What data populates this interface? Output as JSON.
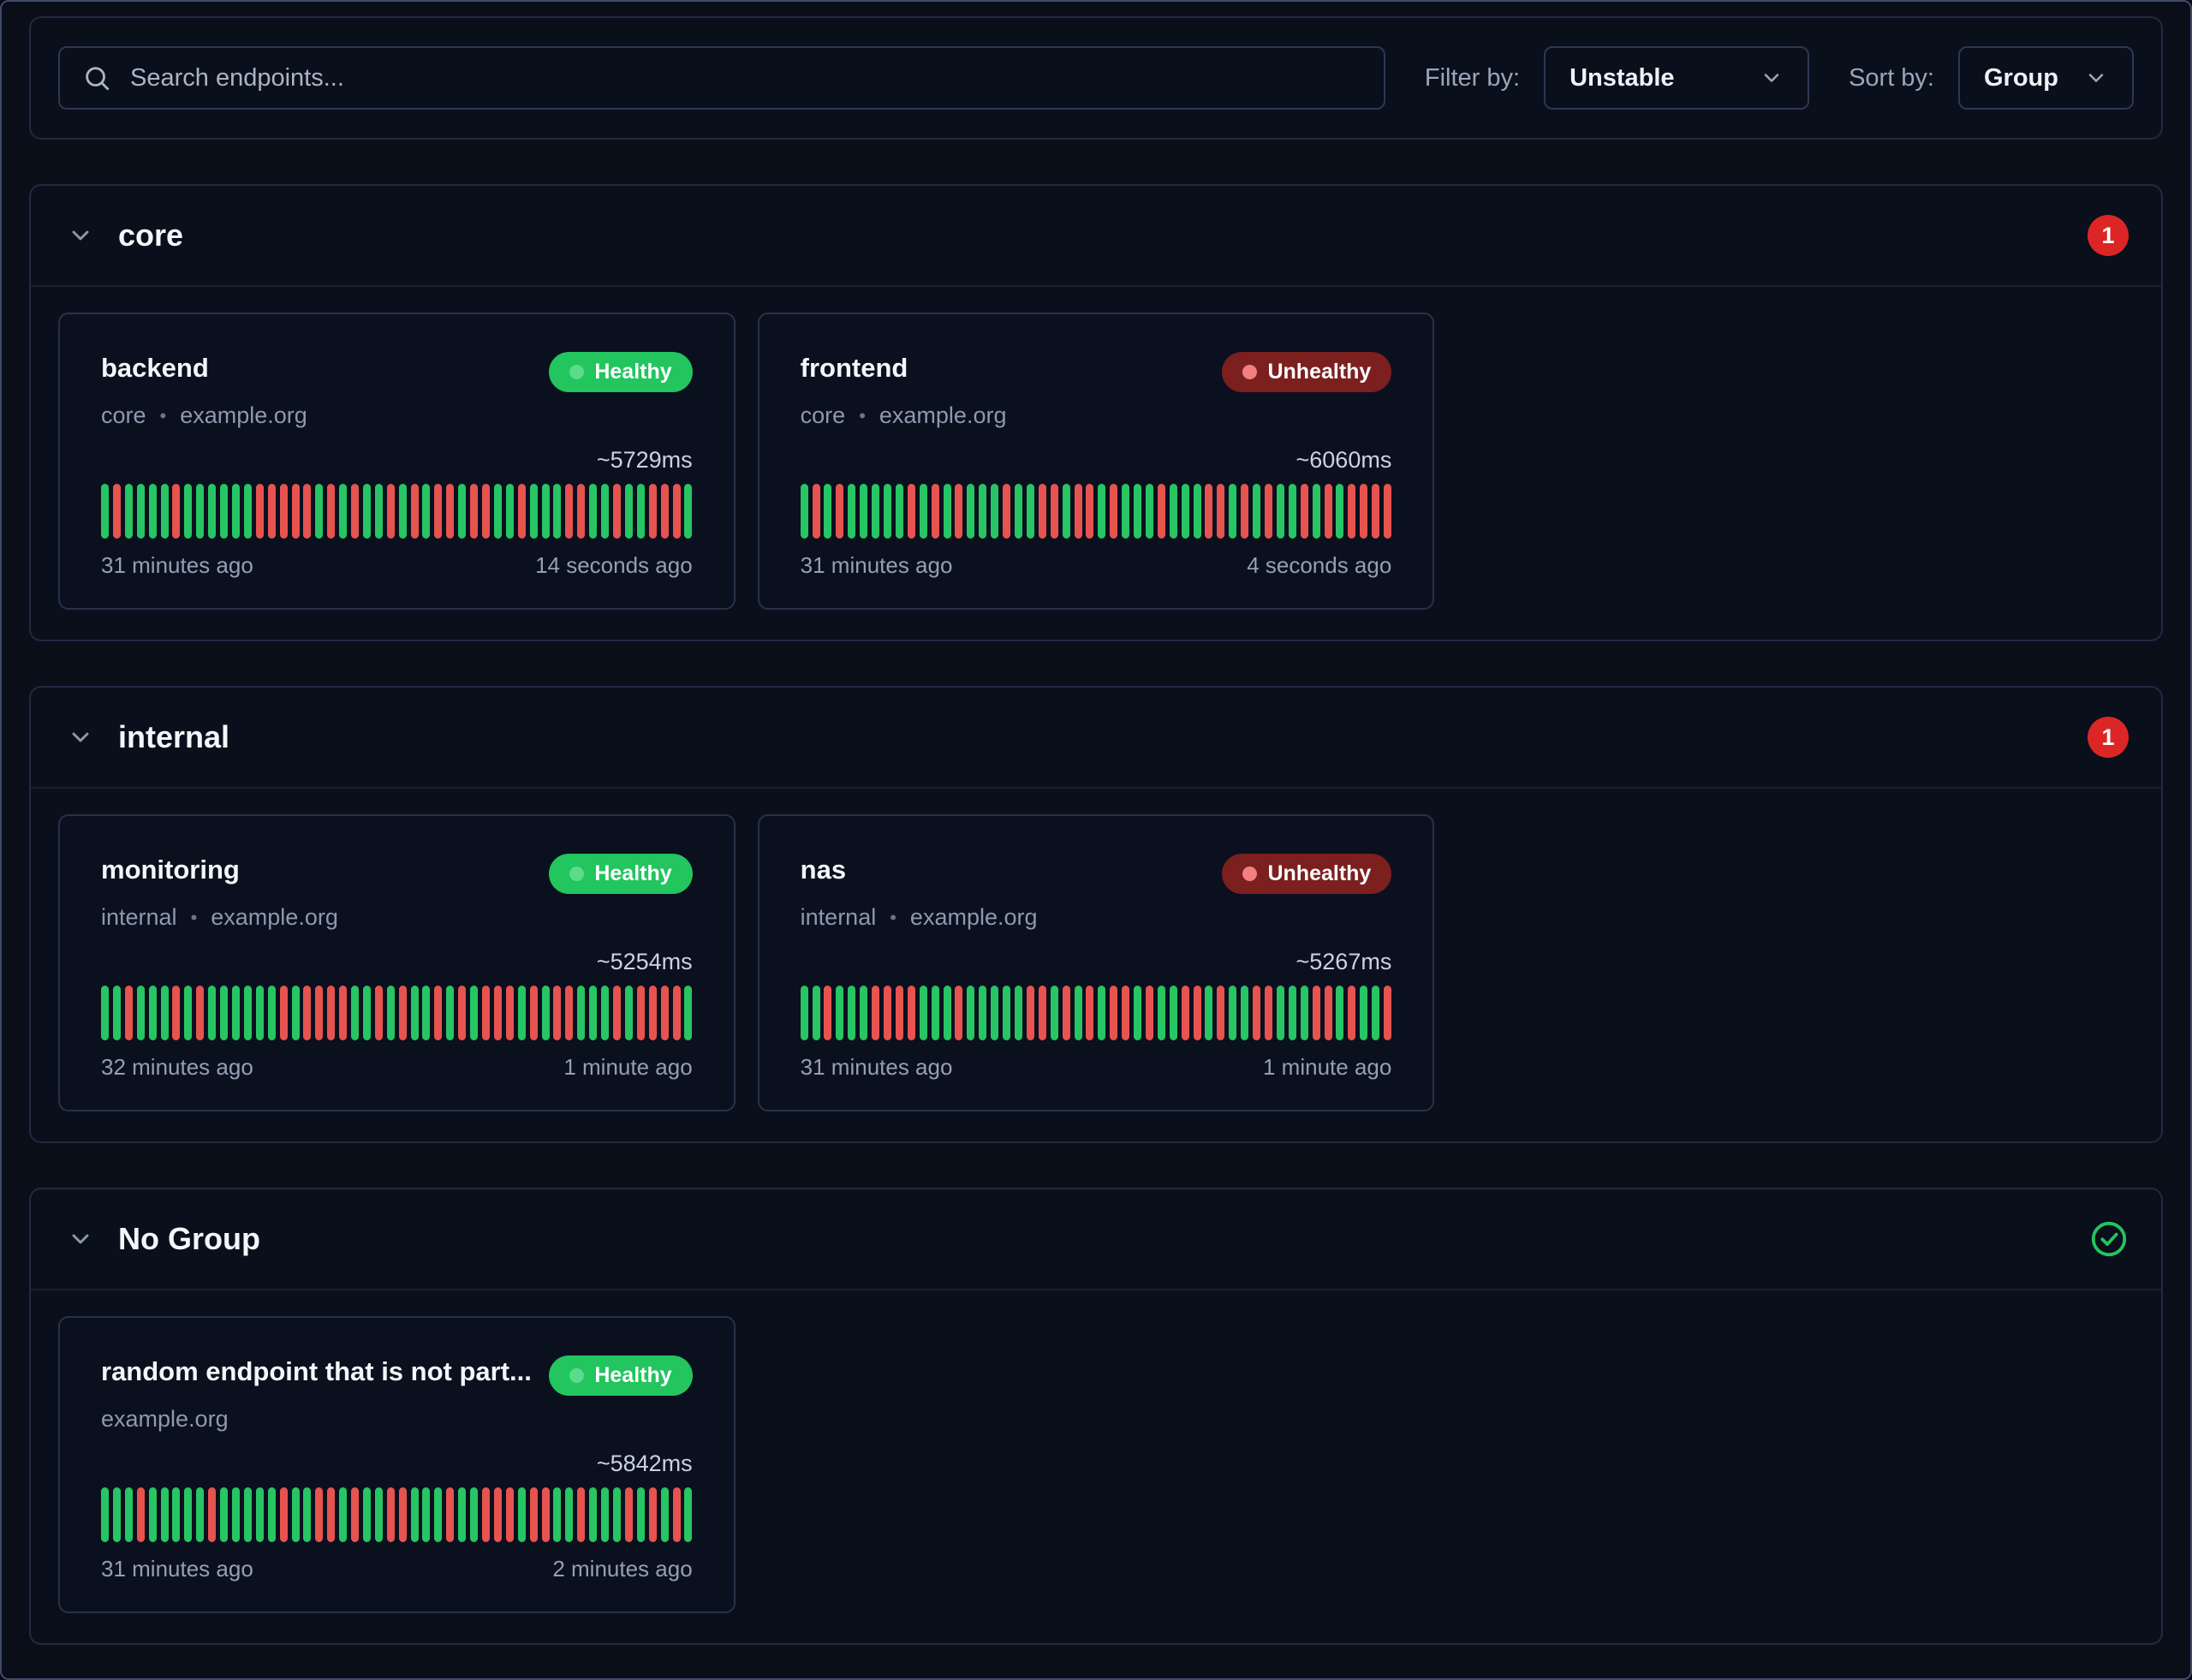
{
  "topbar": {
    "search_placeholder": "Search endpoints...",
    "filter_label": "Filter by:",
    "filter_value": "Unstable",
    "sort_label": "Sort by:",
    "sort_value": "Group"
  },
  "colors": {
    "healthy_pill": "#22c55e",
    "unhealthy_pill": "#7c1f1f",
    "up_bar": "#27c564",
    "down_bar": "#e7534f",
    "alert_badge": "#dc2626",
    "ok_check": "#22c55e"
  },
  "groups": [
    {
      "name": "core",
      "badge_count": "1",
      "endpoints": [
        {
          "name": "backend",
          "status": "Healthy",
          "group_label": "core",
          "separator": "•",
          "host": "example.org",
          "response_time": "~5729ms",
          "first_check": "31 minutes ago",
          "last_check": "14 seconds ago",
          "history": "10111101111110000010101101010010011011100110110001"
        },
        {
          "name": "frontend",
          "status": "Unhealthy",
          "group_label": "core",
          "separator": "•",
          "host": "example.org",
          "response_time": "~6060ms",
          "first_check": "31 minutes ago",
          "last_check": "4 seconds ago",
          "history": "10101111101010111011001001011101110010101101010000"
        }
      ]
    },
    {
      "name": "internal",
      "badge_count": "1",
      "endpoints": [
        {
          "name": "monitoring",
          "status": "Healthy",
          "group_label": "internal",
          "separator": "•",
          "host": "example.org",
          "response_time": "~5254ms",
          "first_check": "32 minutes ago",
          "last_check": "1 minute ago",
          "history": "11011101011111101000011010110101000101001110100001"
        },
        {
          "name": "nas",
          "status": "Unhealthy",
          "group_label": "internal",
          "separator": "•",
          "host": "example.org",
          "response_time": "~5267ms",
          "first_check": "31 minutes ago",
          "last_check": "1 minute ago",
          "history": "11011100001110111110010101001011001011001110010110"
        }
      ]
    },
    {
      "name": "No Group",
      "endpoints": [
        {
          "name": "random endpoint that is not part...",
          "status": "Healthy",
          "host": "example.org",
          "response_time": "~5842ms",
          "first_check": "31 minutes ago",
          "last_check": "2 minutes ago",
          "history": "11101111101111101100101100111011000100110111010101"
        }
      ]
    }
  ]
}
